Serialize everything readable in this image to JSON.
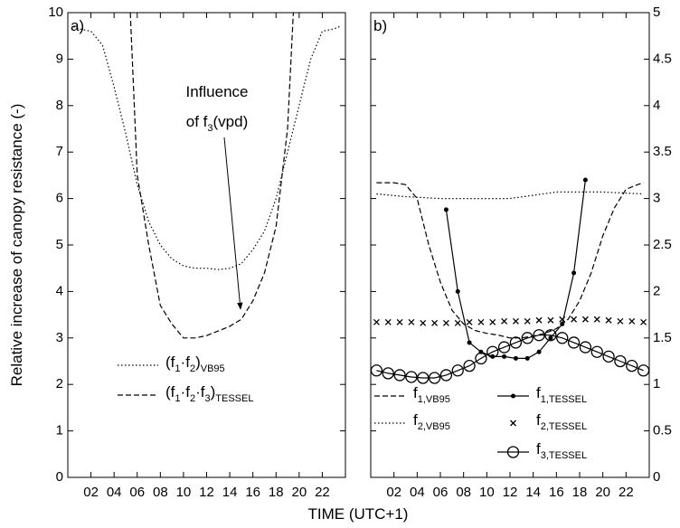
{
  "chart_data": [
    {
      "type": "line",
      "title": "a)",
      "xlabel": "TIME (UTC+1)",
      "ylabel": "Relative increase of canopy resistance (-)",
      "annotation": [
        "Influence",
        "of f3(vpd)"
      ],
      "xlim": [
        0,
        24
      ],
      "xticks": [
        {
          "value": 2,
          "label": "02"
        },
        {
          "value": 4,
          "label": "04"
        },
        {
          "value": 6,
          "label": "06"
        },
        {
          "value": 8,
          "label": "08"
        },
        {
          "value": 10,
          "label": "10"
        },
        {
          "value": 12,
          "label": "12"
        },
        {
          "value": 14,
          "label": "14"
        },
        {
          "value": 16,
          "label": "16"
        },
        {
          "value": 18,
          "label": "18"
        },
        {
          "value": 20,
          "label": "20"
        },
        {
          "value": 22,
          "label": "22"
        }
      ],
      "ylim": [
        0,
        10
      ],
      "yticks": [
        0,
        1,
        2,
        3,
        4,
        5,
        6,
        7,
        8,
        9,
        10
      ],
      "yaxis_side": "left",
      "legend": "lower left",
      "series": [
        {
          "name": "(f1·f2)VB95",
          "color": "#000000",
          "style": "dotted",
          "marker": "none",
          "x": [
            0.5,
            1,
            2,
            3,
            4,
            5,
            6,
            7,
            8,
            9,
            10,
            11,
            12,
            13,
            14,
            15,
            16,
            17,
            18,
            19,
            20,
            21,
            22,
            23,
            23.5
          ],
          "values": [
            9.7,
            9.65,
            9.6,
            9.3,
            8.4,
            7.4,
            6.3,
            5.5,
            5.0,
            4.7,
            4.55,
            4.5,
            4.5,
            4.47,
            4.5,
            4.6,
            4.9,
            5.3,
            6.0,
            7.0,
            8.0,
            9.0,
            9.6,
            9.65,
            9.7
          ]
        },
        {
          "name": "(f1·f2·f3)TESSEL",
          "color": "#000000",
          "style": "dashed",
          "marker": "none",
          "x": [
            5.4,
            6,
            7,
            8,
            9,
            10,
            11,
            12,
            13,
            14,
            15,
            16,
            17,
            18,
            19,
            19.5
          ],
          "values": [
            10,
            6.5,
            5.0,
            3.7,
            3.3,
            3.0,
            3.0,
            3.05,
            3.15,
            3.25,
            3.4,
            3.8,
            4.4,
            5.4,
            7.5,
            10
          ]
        }
      ]
    },
    {
      "type": "line",
      "title": "b)",
      "xlim": [
        0,
        24
      ],
      "xticks": [
        {
          "value": 2,
          "label": "02"
        },
        {
          "value": 4,
          "label": "04"
        },
        {
          "value": 6,
          "label": "06"
        },
        {
          "value": 8,
          "label": "08"
        },
        {
          "value": 10,
          "label": "10"
        },
        {
          "value": 12,
          "label": "12"
        },
        {
          "value": 14,
          "label": "14"
        },
        {
          "value": 16,
          "label": "16"
        },
        {
          "value": 18,
          "label": "18"
        },
        {
          "value": 20,
          "label": "20"
        },
        {
          "value": 22,
          "label": "22"
        }
      ],
      "ylim": [
        0,
        5
      ],
      "yticks": [
        0,
        0.5,
        1,
        1.5,
        2,
        2.5,
        3,
        3.5,
        4,
        4.5,
        5
      ],
      "yaxis_side": "right",
      "legend": "lower left",
      "series": [
        {
          "name": "f1,VB95",
          "color": "#000000",
          "style": "dashed",
          "marker": "none",
          "x": [
            0.5,
            1,
            2,
            3,
            4,
            5,
            6,
            7,
            8,
            9,
            10,
            11,
            12,
            13,
            14,
            15,
            16,
            17,
            18,
            19,
            20,
            21,
            22,
            23,
            23.5
          ],
          "values": [
            3.17,
            3.17,
            3.17,
            3.15,
            3.0,
            2.5,
            2.1,
            1.8,
            1.65,
            1.58,
            1.55,
            1.53,
            1.5,
            1.5,
            1.52,
            1.55,
            1.6,
            1.7,
            1.9,
            2.2,
            2.6,
            2.9,
            3.1,
            3.15,
            3.17
          ]
        },
        {
          "name": "f2,VB95",
          "color": "#000000",
          "style": "dotted",
          "marker": "none",
          "x": [
            0.5,
            3,
            6,
            9,
            12,
            16,
            20,
            23.5
          ],
          "values": [
            3.05,
            3.02,
            3.0,
            3.0,
            3.0,
            3.07,
            3.07,
            3.05
          ]
        },
        {
          "name": "f1,TESSEL",
          "color": "#000000",
          "style": "solid",
          "marker": "dot",
          "x": [
            6.5,
            7.5,
            8.5,
            9.5,
            10.5,
            11.5,
            12.5,
            13.5,
            14.5,
            15.5,
            16.5,
            17.5,
            18.5
          ],
          "values": [
            2.88,
            2.0,
            1.45,
            1.35,
            1.3,
            1.3,
            1.28,
            1.28,
            1.35,
            1.5,
            1.65,
            2.2,
            3.2
          ]
        },
        {
          "name": "f2,TESSEL",
          "color": "#000000",
          "style": "none",
          "marker": "x",
          "x": [
            0.5,
            1.5,
            2.5,
            3.5,
            4.5,
            5.5,
            6.5,
            7.5,
            8.5,
            9.5,
            10.5,
            11.5,
            12.5,
            13.5,
            14.5,
            15.5,
            16.5,
            17.5,
            18.5,
            19.5,
            20.5,
            21.5,
            22.5,
            23.5
          ],
          "values": [
            1.67,
            1.67,
            1.67,
            1.67,
            1.66,
            1.66,
            1.66,
            1.66,
            1.67,
            1.67,
            1.67,
            1.68,
            1.68,
            1.68,
            1.69,
            1.69,
            1.7,
            1.7,
            1.7,
            1.7,
            1.69,
            1.68,
            1.68,
            1.67
          ]
        },
        {
          "name": "f3,TESSEL",
          "color": "#000000",
          "style": "solid",
          "marker": "circle",
          "x": [
            0.5,
            1.5,
            2.5,
            3.5,
            4.5,
            5.5,
            6.5,
            7.5,
            8.5,
            9.5,
            10.5,
            11.5,
            12.5,
            13.5,
            14.5,
            15.5,
            16.5,
            17.5,
            18.5,
            19.5,
            20.5,
            21.5,
            22.5,
            23.5
          ],
          "values": [
            1.15,
            1.12,
            1.1,
            1.08,
            1.07,
            1.07,
            1.1,
            1.15,
            1.2,
            1.28,
            1.35,
            1.4,
            1.45,
            1.5,
            1.53,
            1.53,
            1.5,
            1.45,
            1.4,
            1.35,
            1.3,
            1.25,
            1.2,
            1.15
          ]
        }
      ]
    }
  ]
}
